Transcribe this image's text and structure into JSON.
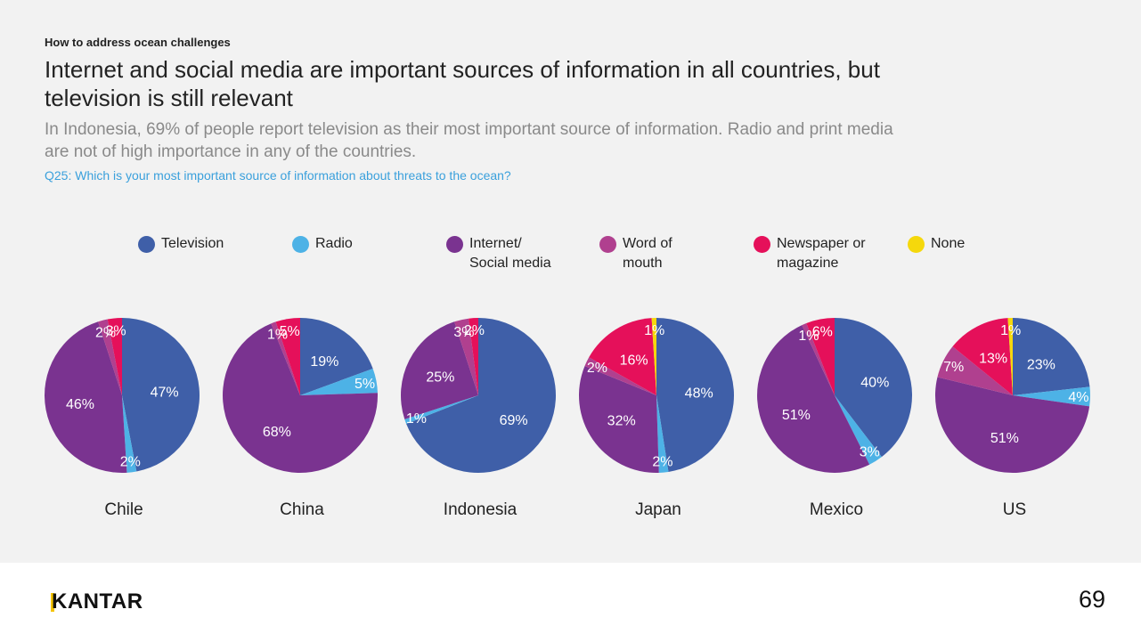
{
  "header": {
    "kicker": "How to address ocean challenges",
    "title": "Internet and social media are important sources of information in all countries, but television is still relevant",
    "subtitle": "In Indonesia, 69% of people report television as their most important source of information. Radio and print media are not of high importance in any of the countries.",
    "question": "Q25: Which is your most important source of information about threats to the ocean?"
  },
  "legend": [
    {
      "label": "Television",
      "color": "#3f5fa8"
    },
    {
      "label": "Radio",
      "color": "#4db2e6"
    },
    {
      "label": "Internet/ Social media",
      "color": "#7a3390"
    },
    {
      "label": "Word of mouth",
      "color": "#b0408f"
    },
    {
      "label": "Newspaper or magazine",
      "color": "#e5105a"
    },
    {
      "label": "None",
      "color": "#f5d80c"
    }
  ],
  "chart_data": {
    "type": "pie",
    "series_order": [
      "Television",
      "Radio",
      "Internet/ Social media",
      "Word of mouth",
      "Newspaper or magazine",
      "None"
    ],
    "charts": [
      {
        "country": "Chile",
        "values": [
          47,
          2,
          46,
          2,
          3,
          0
        ]
      },
      {
        "country": "China",
        "values": [
          19,
          5,
          68,
          1,
          5,
          0
        ]
      },
      {
        "country": "Indonesia",
        "values": [
          69,
          1,
          25,
          3,
          2,
          0
        ]
      },
      {
        "country": "Japan",
        "values": [
          48,
          2,
          32,
          2,
          16,
          1
        ]
      },
      {
        "country": "Mexico",
        "values": [
          40,
          3,
          51,
          1,
          6,
          0
        ]
      },
      {
        "country": "US",
        "values": [
          23,
          4,
          51,
          7,
          13,
          1
        ]
      }
    ]
  },
  "footer": {
    "logo": "KANTAR",
    "page_number": "69"
  }
}
